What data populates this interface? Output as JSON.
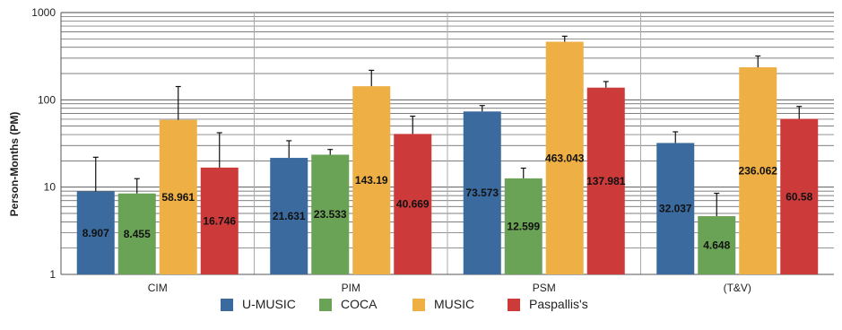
{
  "chart_data": {
    "type": "bar",
    "ylabel": "Person-Months (PM)",
    "xlabel": "",
    "yscale": "log",
    "ylim": [
      1,
      1000
    ],
    "y_ticks": [
      "1",
      "10",
      "100",
      "1000"
    ],
    "grid": true,
    "legend_position": "bottom",
    "categories": [
      "CIM",
      "PIM",
      "PSM",
      "(T&V)"
    ],
    "series": [
      {
        "name": "U-MUSIC",
        "color": "#3a6a9e",
        "values": [
          8.907,
          21.631,
          73.573,
          32.037
        ],
        "labels": [
          "8.907",
          "21.631",
          "73.573",
          "32.037"
        ],
        "error_upper": [
          22,
          34,
          86,
          43
        ]
      },
      {
        "name": "COCA",
        "color": "#6aa256",
        "values": [
          8.455,
          23.533,
          12.599,
          4.648
        ],
        "labels": [
          "8.455",
          "23.533",
          "12.599",
          "4.648"
        ],
        "error_upper": [
          12.5,
          27,
          16.5,
          8.5
        ]
      },
      {
        "name": "MUSIC",
        "color": "#eeb045",
        "values": [
          58.961,
          143.19,
          463.043,
          236.062
        ],
        "labels": [
          "58.961",
          "143.19",
          "463.043",
          "236.062"
        ],
        "error_upper": [
          142,
          218,
          536,
          318
        ]
      },
      {
        "name": "Paspallis's",
        "color": "#cc3a3a",
        "values": [
          16.746,
          40.669,
          137.981,
          60.58
        ],
        "labels": [
          "16.746",
          "40.669",
          "137.981",
          "60.58"
        ],
        "error_upper": [
          42,
          65,
          162,
          84
        ]
      }
    ]
  }
}
